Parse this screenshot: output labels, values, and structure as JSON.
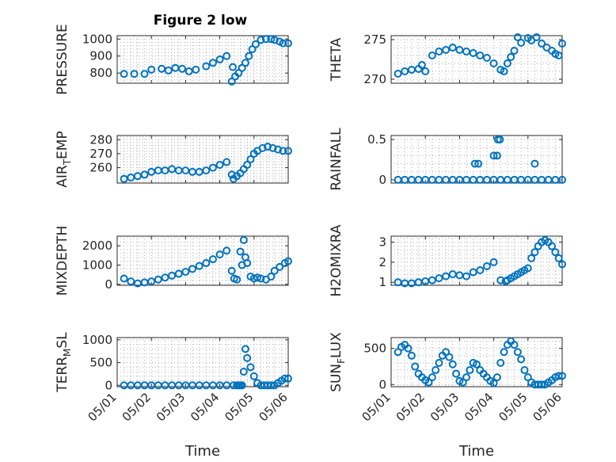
{
  "figure": {
    "title": "Figure 2 low"
  },
  "colors": {
    "marker": "#0072BD",
    "axis": "#262626",
    "grid": "#b0b0b0"
  },
  "xaxis": {
    "label": "Time",
    "ticks": [
      "05/01",
      "05/02",
      "05/03",
      "05/04",
      "05/05",
      "05/06"
    ]
  },
  "chart_data": [
    {
      "type": "scatter",
      "id": "pressure",
      "ylabel": "PRESSURE",
      "title": "Figure 2 low",
      "xlim": [
        0,
        5
      ],
      "ylim": [
        740,
        1020
      ],
      "yticks": [
        800,
        900,
        1000
      ],
      "show_xticks": false,
      "grid": true,
      "x": [
        0.2,
        0.5,
        0.8,
        1.0,
        1.3,
        1.5,
        1.7,
        1.9,
        2.1,
        2.3,
        2.6,
        2.8,
        3.0,
        3.2,
        3.35,
        3.38,
        3.45,
        3.55,
        3.65,
        3.75,
        3.85,
        3.95,
        4.05,
        4.2,
        4.35,
        4.5,
        4.6,
        4.75,
        4.85,
        5.0
      ],
      "y": [
        795,
        795,
        795,
        820,
        825,
        815,
        830,
        825,
        810,
        820,
        840,
        860,
        880,
        900,
        750,
        835,
        780,
        800,
        830,
        860,
        900,
        940,
        970,
        995,
        1000,
        1000,
        995,
        985,
        975,
        975
      ]
    },
    {
      "type": "scatter",
      "id": "theta",
      "ylabel": "THETA",
      "xlim": [
        0,
        5
      ],
      "ylim": [
        269.5,
        275.5
      ],
      "yticks": [
        270,
        275
      ],
      "show_xticks": false,
      "grid": true,
      "x": [
        0.2,
        0.4,
        0.6,
        0.8,
        0.9,
        1.0,
        1.2,
        1.4,
        1.6,
        1.8,
        2.0,
        2.2,
        2.4,
        2.6,
        2.8,
        3.0,
        3.2,
        3.3,
        3.4,
        3.5,
        3.6,
        3.7,
        3.8,
        4.0,
        4.1,
        4.25,
        4.4,
        4.55,
        4.7,
        4.8,
        4.9,
        5.0
      ],
      "y": [
        270.7,
        271.0,
        271.2,
        271.3,
        271.8,
        271.0,
        273.0,
        273.5,
        273.7,
        274.0,
        273.7,
        273.5,
        273.3,
        273.0,
        272.7,
        272.0,
        271.2,
        271.0,
        272.0,
        272.8,
        273.6,
        275.3,
        274.6,
        275.2,
        274.9,
        275.3,
        274.5,
        274.0,
        273.6,
        273.2,
        273.0,
        274.5
      ]
    },
    {
      "type": "scatter",
      "id": "air-temp",
      "ylabel": "AIR_TEMP",
      "xlim": [
        0,
        5
      ],
      "ylim": [
        249,
        283
      ],
      "yticks": [
        260,
        270,
        280
      ],
      "show_xticks": false,
      "grid": true,
      "x": [
        0.2,
        0.4,
        0.6,
        0.8,
        1.0,
        1.2,
        1.4,
        1.6,
        1.8,
        2.0,
        2.2,
        2.4,
        2.6,
        2.8,
        3.0,
        3.2,
        3.35,
        3.4,
        3.5,
        3.6,
        3.7,
        3.8,
        3.9,
        4.0,
        4.1,
        4.25,
        4.4,
        4.55,
        4.7,
        4.85,
        5.0
      ],
      "y": [
        252,
        253,
        254,
        255,
        257,
        258,
        258,
        259,
        258,
        258,
        257,
        257,
        258,
        260,
        262,
        264,
        255,
        252,
        254,
        256,
        259,
        262,
        266,
        270,
        272,
        274,
        275,
        274,
        273,
        272,
        272
      ]
    },
    {
      "type": "scatter",
      "id": "rainfall",
      "ylabel": "RAINFALL",
      "xlim": [
        0,
        5
      ],
      "ylim": [
        -0.04,
        0.55
      ],
      "yticks": [
        0,
        0.5
      ],
      "show_xticks": false,
      "grid": true,
      "x": [
        0.2,
        0.4,
        0.6,
        0.8,
        1.0,
        1.2,
        1.4,
        1.6,
        1.8,
        2.0,
        2.2,
        2.4,
        2.6,
        2.8,
        3.0,
        3.2,
        3.4,
        3.6,
        3.8,
        4.0,
        4.2,
        4.4,
        4.6,
        4.8,
        5.0,
        2.45,
        2.55,
        3.0,
        3.1,
        3.12,
        3.18,
        4.2
      ],
      "y": [
        0,
        0,
        0,
        0,
        0,
        0,
        0,
        0,
        0,
        0,
        0,
        0,
        0,
        0,
        0,
        0,
        0,
        0,
        0,
        0,
        0,
        0,
        0,
        0,
        0,
        0.2,
        0.2,
        0.3,
        0.3,
        0.5,
        0.5,
        0.2
      ]
    },
    {
      "type": "scatter",
      "id": "mixdepth",
      "ylabel": "MIXDEPTH",
      "xlim": [
        0,
        5
      ],
      "ylim": [
        -50,
        2500
      ],
      "yticks": [
        0,
        1000,
        2000
      ],
      "show_xticks": false,
      "grid": true,
      "x": [
        0.2,
        0.4,
        0.6,
        0.8,
        1.0,
        1.2,
        1.4,
        1.6,
        1.8,
        2.0,
        2.2,
        2.4,
        2.6,
        2.8,
        3.0,
        3.2,
        3.35,
        3.42,
        3.5,
        3.6,
        3.65,
        3.7,
        3.75,
        3.8,
        3.9,
        4.0,
        4.1,
        4.2,
        4.35,
        4.5,
        4.6,
        4.75,
        4.9,
        5.0
      ],
      "y": [
        300,
        150,
        50,
        100,
        150,
        250,
        350,
        450,
        550,
        650,
        800,
        950,
        1100,
        1300,
        1550,
        1750,
        700,
        300,
        250,
        1700,
        1000,
        2300,
        1400,
        1100,
        400,
        300,
        350,
        300,
        250,
        400,
        700,
        900,
        1100,
        1200
      ]
    },
    {
      "type": "scatter",
      "id": "h2omixra",
      "ylabel": "H2OMIXRA",
      "xlim": [
        0,
        5
      ],
      "ylim": [
        0.85,
        3.3
      ],
      "yticks": [
        1,
        2,
        3
      ],
      "show_xticks": false,
      "grid": true,
      "x": [
        0.2,
        0.4,
        0.6,
        0.8,
        1.0,
        1.2,
        1.4,
        1.6,
        1.8,
        2.0,
        2.2,
        2.4,
        2.6,
        2.8,
        3.0,
        3.2,
        3.35,
        3.4,
        3.5,
        3.6,
        3.7,
        3.8,
        3.9,
        4.0,
        4.1,
        4.2,
        4.3,
        4.4,
        4.5,
        4.6,
        4.7,
        4.8,
        4.9,
        5.0
      ],
      "y": [
        1.0,
        0.95,
        0.95,
        1.0,
        1.05,
        1.1,
        1.2,
        1.3,
        1.4,
        1.35,
        1.3,
        1.5,
        1.6,
        1.8,
        2.0,
        1.1,
        1.05,
        1.1,
        1.2,
        1.3,
        1.4,
        1.5,
        1.6,
        1.7,
        2.2,
        2.5,
        2.8,
        3.0,
        3.1,
        3.0,
        2.8,
        2.5,
        2.2,
        1.9
      ]
    },
    {
      "type": "scatter",
      "id": "terr-msl",
      "ylabel": "TERR_MSL",
      "xlim": [
        0,
        5
      ],
      "ylim": [
        -30,
        1050
      ],
      "yticks": [
        0,
        500,
        1000
      ],
      "show_xticks": true,
      "grid": true,
      "x": [
        0.2,
        0.4,
        0.6,
        0.8,
        1.0,
        1.2,
        1.4,
        1.6,
        1.8,
        2.0,
        2.2,
        2.4,
        2.6,
        2.8,
        3.0,
        3.2,
        3.4,
        3.5,
        3.55,
        3.6,
        3.65,
        3.7,
        3.75,
        3.8,
        3.9,
        4.0,
        4.1,
        4.2,
        4.3,
        4.4,
        4.5,
        4.6,
        4.7,
        4.8,
        4.9,
        5.0
      ],
      "y": [
        0,
        0,
        0,
        0,
        0,
        0,
        0,
        0,
        0,
        0,
        0,
        0,
        0,
        0,
        0,
        0,
        0,
        0,
        0,
        0,
        0,
        300,
        800,
        600,
        400,
        200,
        50,
        0,
        0,
        0,
        0,
        0,
        50,
        100,
        150,
        150
      ]
    },
    {
      "type": "scatter",
      "id": "sun-flux",
      "ylabel": "SUN_FLUX",
      "xlim": [
        0,
        5
      ],
      "ylim": [
        -30,
        650
      ],
      "yticks": [
        0,
        500
      ],
      "show_xticks": true,
      "grid": true,
      "x": [
        0.2,
        0.3,
        0.4,
        0.5,
        0.6,
        0.7,
        0.8,
        0.9,
        1.0,
        1.1,
        1.2,
        1.3,
        1.4,
        1.5,
        1.6,
        1.7,
        1.8,
        1.9,
        2.0,
        2.1,
        2.2,
        2.3,
        2.4,
        2.5,
        2.6,
        2.7,
        2.8,
        2.9,
        3.0,
        3.1,
        3.2,
        3.3,
        3.4,
        3.5,
        3.6,
        3.7,
        3.8,
        3.9,
        4.0,
        4.1,
        4.2,
        4.3,
        4.4,
        4.5,
        4.6,
        4.7,
        4.8,
        4.9,
        5.0
      ],
      "y": [
        450,
        520,
        550,
        500,
        400,
        250,
        150,
        100,
        60,
        30,
        100,
        200,
        300,
        400,
        450,
        380,
        280,
        150,
        50,
        30,
        100,
        200,
        300,
        280,
        200,
        150,
        100,
        50,
        20,
        100,
        300,
        450,
        550,
        600,
        550,
        450,
        350,
        200,
        100,
        30,
        0,
        0,
        0,
        0,
        30,
        60,
        100,
        120,
        120
      ]
    }
  ]
}
